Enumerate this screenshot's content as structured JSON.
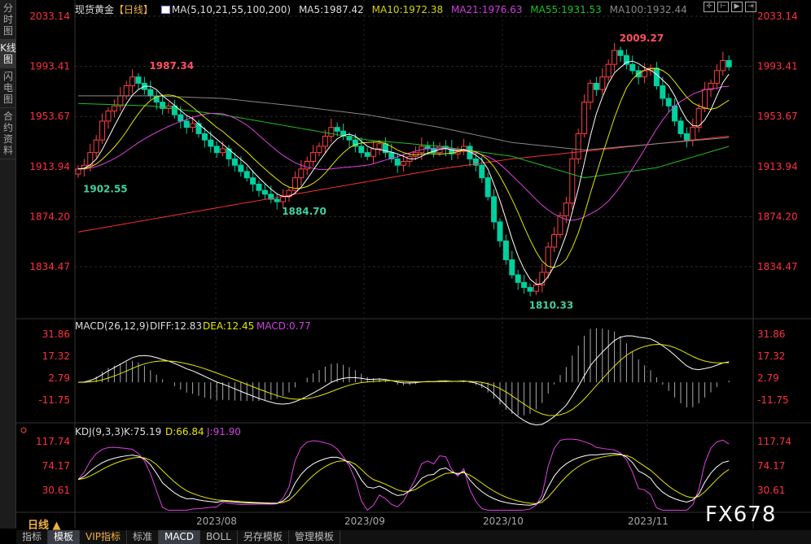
{
  "side_tabs": [
    "分时图",
    "K线图",
    "闪电图",
    "合约资料"
  ],
  "header": {
    "symbol": "现货黄金",
    "period": "【日线】",
    "ma_title": "MA(5,10,21,55,100,200)",
    "ma5": "MA5:1987.42",
    "ma10": "MA10:1972.38",
    "ma21": "MA21:1976.63",
    "ma55": "MA55:1931.53",
    "ma100": "MA100:1932.44"
  },
  "colors": {
    "up": "#ff4040",
    "down": "#00d0a0",
    "ma5": "#ffffff",
    "ma10": "#e6e600",
    "ma21": "#e040e0",
    "ma55": "#20c020",
    "ma100": "#888888",
    "ma200": "#ff3030",
    "axis": "#ff3040"
  },
  "price_axis": [
    "2033.14",
    "1993.41",
    "1953.67",
    "1913.94",
    "1874.20",
    "1834.47"
  ],
  "annotations": [
    {
      "text": "1987.34",
      "i": 11,
      "kind": "high"
    },
    {
      "text": "1902.55",
      "i": 0,
      "kind": "low"
    },
    {
      "text": "1884.70",
      "i": 33,
      "kind": "low"
    },
    {
      "text": "1810.33",
      "i": 74,
      "kind": "low"
    },
    {
      "text": "2009.27",
      "i": 89,
      "kind": "high"
    }
  ],
  "chart_data": {
    "type": "candlestick",
    "closes": [
      1912,
      1915,
      1925,
      1935,
      1950,
      1958,
      1962,
      1970,
      1978,
      1985,
      1980,
      1975,
      1970,
      1965,
      1960,
      1962,
      1955,
      1950,
      1945,
      1948,
      1940,
      1935,
      1930,
      1925,
      1928,
      1920,
      1915,
      1910,
      1905,
      1900,
      1895,
      1892,
      1888,
      1886,
      1890,
      1895,
      1905,
      1912,
      1918,
      1925,
      1930,
      1938,
      1945,
      1942,
      1938,
      1935,
      1930,
      1925,
      1922,
      1928,
      1932,
      1925,
      1920,
      1915,
      1918,
      1922,
      1925,
      1930,
      1928,
      1925,
      1930,
      1928,
      1924,
      1926,
      1930,
      1920,
      1915,
      1905,
      1890,
      1870,
      1855,
      1840,
      1828,
      1822,
      1818,
      1815,
      1820,
      1830,
      1850,
      1860,
      1875,
      1885,
      1920,
      1940,
      1965,
      1980,
      1975,
      1985,
      1995,
      2006,
      2002,
      1995,
      1990,
      1985,
      1990,
      1992,
      1978,
      1968,
      1962,
      1950,
      1940,
      1935,
      1945,
      1960,
      1975,
      1980,
      1990,
      1998,
      1993
    ],
    "ma55": [
      1964,
      1962,
      1955,
      1945,
      1935,
      1930,
      1922,
      1905,
      1913,
      1930
    ],
    "ma100": [
      1970,
      1970,
      1968,
      1962,
      1955,
      1945,
      1933,
      1927,
      1932,
      1937
    ],
    "ma200": [
      1862,
      1872,
      1882,
      1892,
      1902,
      1912,
      1920,
      1926,
      1932,
      1938
    ],
    "ylim": [
      1834.47,
      2033.14
    ],
    "x_ticks": [
      "2023/08",
      "2023/09",
      "2023/10",
      "2023/11"
    ]
  },
  "macd": {
    "title": "MACD(26,12,9)",
    "diff": "DIFF:12.83",
    "dea": "DEA:12.45",
    "macd": "MACD:0.77",
    "axis": [
      "31.86",
      "17.32",
      "2.79",
      "-11.75"
    ]
  },
  "kdj": {
    "title": "KDJ(9,3,3)",
    "k": "K:75.19",
    "d": "D:66.84",
    "j": "J:91.90",
    "axis": [
      "117.74",
      "74.17",
      "30.61"
    ]
  },
  "period_label": "日线 ▲",
  "bottom_tabs": [
    "指标",
    "模板",
    "VIP指标",
    "标准",
    "MACD",
    "BOLL",
    "另存模板",
    "管理模板"
  ],
  "watermark": "FX678"
}
